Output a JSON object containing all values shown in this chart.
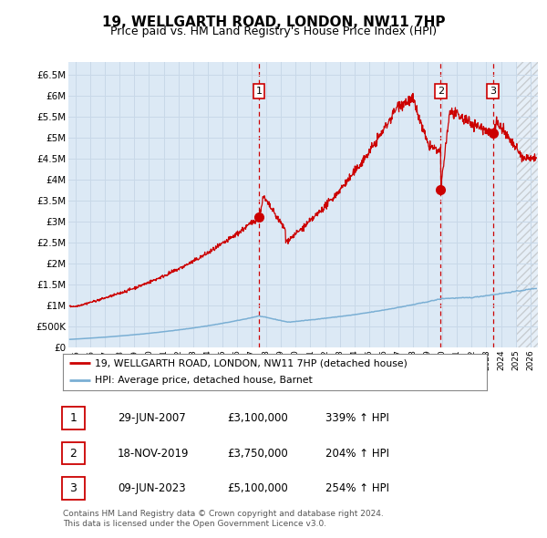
{
  "title": "19, WELLGARTH ROAD, LONDON, NW11 7HP",
  "subtitle": "Price paid vs. HM Land Registry's House Price Index (HPI)",
  "title_fontsize": 11,
  "subtitle_fontsize": 9,
  "ylabel_ticks": [
    "£0",
    "£500K",
    "£1M",
    "£1.5M",
    "£2M",
    "£2.5M",
    "£3M",
    "£3.5M",
    "£4M",
    "£4.5M",
    "£5M",
    "£5.5M",
    "£6M",
    "£6.5M"
  ],
  "ytick_values": [
    0,
    500000,
    1000000,
    1500000,
    2000000,
    2500000,
    3000000,
    3500000,
    4000000,
    4500000,
    5000000,
    5500000,
    6000000,
    6500000
  ],
  "xlim": [
    1994.5,
    2026.5
  ],
  "ylim": [
    0,
    6800000
  ],
  "xtick_years": [
    1995,
    1996,
    1997,
    1998,
    1999,
    2000,
    2001,
    2002,
    2003,
    2004,
    2005,
    2006,
    2007,
    2008,
    2009,
    2010,
    2011,
    2012,
    2013,
    2014,
    2015,
    2016,
    2017,
    2018,
    2019,
    2020,
    2021,
    2022,
    2023,
    2024,
    2025,
    2026
  ],
  "sale_points": [
    {
      "num": 1,
      "year": 2007.49,
      "price": 3100000,
      "date": "29-JUN-2007",
      "pct": "339%"
    },
    {
      "num": 2,
      "year": 2019.88,
      "price": 3750000,
      "date": "18-NOV-2019",
      "pct": "204%"
    },
    {
      "num": 3,
      "year": 2023.44,
      "price": 5100000,
      "date": "09-JUN-2023",
      "pct": "254%"
    }
  ],
  "red_line_color": "#cc0000",
  "blue_line_color": "#7aafd4",
  "grid_color": "#c8d8e8",
  "plot_bg_color": "#dce9f5",
  "vline_color": "#cc0000",
  "footnote": "Contains HM Land Registry data © Crown copyright and database right 2024.\nThis data is licensed under the Open Government Licence v3.0.",
  "legend_line1": "19, WELLGARTH ROAD, LONDON, NW11 7HP (detached house)",
  "legend_line2": "HPI: Average price, detached house, Barnet",
  "hatch_start": 2025.0
}
